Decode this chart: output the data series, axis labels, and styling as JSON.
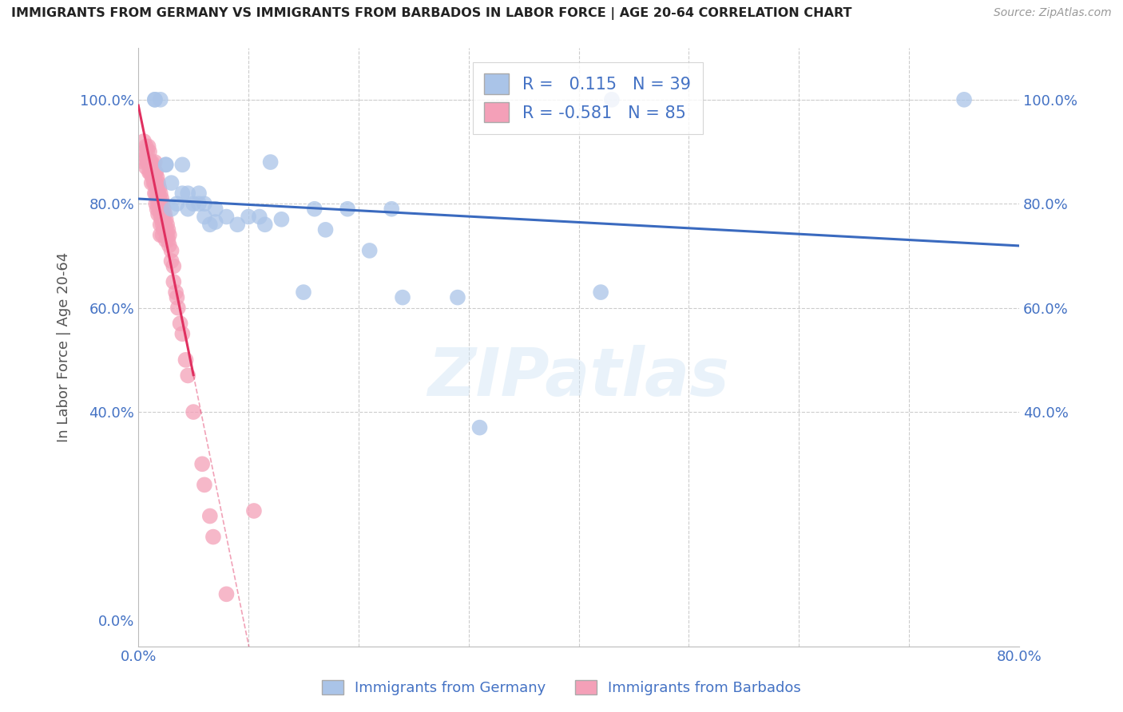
{
  "title": "IMMIGRANTS FROM GERMANY VS IMMIGRANTS FROM BARBADOS IN LABOR FORCE | AGE 20-64 CORRELATION CHART",
  "source": "Source: ZipAtlas.com",
  "ylabel": "In Labor Force | Age 20-64",
  "xlim": [
    0.0,
    0.8
  ],
  "ylim": [
    -0.05,
    1.1
  ],
  "germany_R": 0.115,
  "germany_N": 39,
  "barbados_R": -0.581,
  "barbados_N": 85,
  "germany_color": "#aac4e8",
  "barbados_color": "#f4a0b8",
  "germany_line_color": "#3a6abf",
  "barbados_line_color": "#e03060",
  "watermark": "ZIPatlas",
  "germany_scatter_x": [
    0.015,
    0.015,
    0.02,
    0.025,
    0.025,
    0.03,
    0.03,
    0.035,
    0.04,
    0.04,
    0.045,
    0.045,
    0.05,
    0.055,
    0.055,
    0.06,
    0.06,
    0.065,
    0.07,
    0.07,
    0.08,
    0.09,
    0.1,
    0.11,
    0.115,
    0.12,
    0.13,
    0.15,
    0.16,
    0.17,
    0.19,
    0.21,
    0.23,
    0.24,
    0.29,
    0.31,
    0.42,
    0.43,
    0.75
  ],
  "germany_scatter_y": [
    1.0,
    1.0,
    1.0,
    0.875,
    0.875,
    0.84,
    0.79,
    0.8,
    0.875,
    0.82,
    0.82,
    0.79,
    0.8,
    0.82,
    0.8,
    0.8,
    0.775,
    0.76,
    0.79,
    0.765,
    0.775,
    0.76,
    0.775,
    0.775,
    0.76,
    0.88,
    0.77,
    0.63,
    0.79,
    0.75,
    0.79,
    0.71,
    0.79,
    0.62,
    0.62,
    0.37,
    0.63,
    1.0,
    1.0
  ],
  "barbados_scatter_x": [
    0.005,
    0.005,
    0.006,
    0.007,
    0.007,
    0.007,
    0.008,
    0.008,
    0.009,
    0.009,
    0.01,
    0.01,
    0.01,
    0.011,
    0.011,
    0.012,
    0.012,
    0.012,
    0.013,
    0.013,
    0.014,
    0.014,
    0.015,
    0.015,
    0.015,
    0.015,
    0.016,
    0.016,
    0.016,
    0.016,
    0.017,
    0.017,
    0.017,
    0.017,
    0.018,
    0.018,
    0.018,
    0.018,
    0.019,
    0.019,
    0.019,
    0.02,
    0.02,
    0.02,
    0.02,
    0.02,
    0.021,
    0.021,
    0.021,
    0.022,
    0.022,
    0.022,
    0.022,
    0.023,
    0.023,
    0.023,
    0.024,
    0.024,
    0.025,
    0.025,
    0.025,
    0.026,
    0.026,
    0.027,
    0.027,
    0.028,
    0.028,
    0.03,
    0.03,
    0.032,
    0.032,
    0.034,
    0.035,
    0.036,
    0.038,
    0.04,
    0.043,
    0.045,
    0.05,
    0.058,
    0.06,
    0.065,
    0.068,
    0.08,
    0.105
  ],
  "barbados_scatter_y": [
    0.92,
    0.88,
    0.9,
    0.91,
    0.89,
    0.87,
    0.9,
    0.88,
    0.91,
    0.88,
    0.9,
    0.88,
    0.86,
    0.88,
    0.86,
    0.88,
    0.86,
    0.84,
    0.87,
    0.85,
    0.87,
    0.84,
    0.88,
    0.86,
    0.84,
    0.82,
    0.86,
    0.84,
    0.82,
    0.8,
    0.85,
    0.83,
    0.81,
    0.79,
    0.84,
    0.82,
    0.8,
    0.78,
    0.83,
    0.81,
    0.79,
    0.82,
    0.8,
    0.78,
    0.76,
    0.74,
    0.81,
    0.79,
    0.77,
    0.8,
    0.78,
    0.76,
    0.74,
    0.79,
    0.77,
    0.75,
    0.78,
    0.76,
    0.77,
    0.75,
    0.73,
    0.76,
    0.74,
    0.75,
    0.73,
    0.74,
    0.72,
    0.71,
    0.69,
    0.68,
    0.65,
    0.63,
    0.62,
    0.6,
    0.57,
    0.55,
    0.5,
    0.47,
    0.4,
    0.3,
    0.26,
    0.2,
    0.16,
    0.05,
    0.21
  ],
  "background_color": "#ffffff",
  "grid_color": "#cccccc",
  "tick_label_color": "#4472c4"
}
